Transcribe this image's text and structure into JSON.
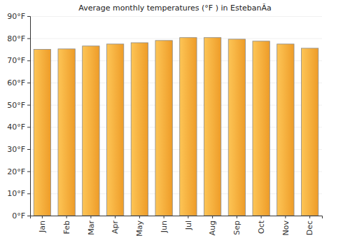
{
  "chart_data": {
    "type": "bar",
    "title": "Average monthly temperatures (°F ) in EstebanÃ­a",
    "categories": [
      "Jan",
      "Feb",
      "Mar",
      "Apr",
      "May",
      "Jun",
      "Jul",
      "Aug",
      "Sep",
      "Oct",
      "Nov",
      "Dec"
    ],
    "values": [
      75,
      75.2,
      76.5,
      77.4,
      78,
      79,
      80.3,
      80.3,
      79.6,
      78.7,
      77.4,
      75.5
    ],
    "color": "#fba52a",
    "ylim": [
      0,
      90
    ],
    "yticks": [
      {
        "value": 0,
        "label": "0°F"
      },
      {
        "value": 10,
        "label": "10°F"
      },
      {
        "value": 20,
        "label": "20°F"
      },
      {
        "value": 30,
        "label": "30°F"
      },
      {
        "value": 40,
        "label": "40°F"
      },
      {
        "value": 50,
        "label": "50°F"
      },
      {
        "value": 60,
        "label": "60°F"
      },
      {
        "value": 70,
        "label": "70°F"
      },
      {
        "value": 80,
        "label": "80°F"
      },
      {
        "value": 90,
        "label": "90°F"
      }
    ],
    "grid": true
  }
}
